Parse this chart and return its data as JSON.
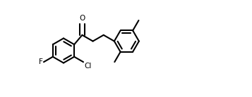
{
  "bg_color": "#ffffff",
  "line_color": "#000000",
  "line_width": 1.5,
  "font_size": 7.5,
  "figsize": [
    3.57,
    1.38
  ],
  "dpi": 100,
  "bl": 0.175,
  "xlim": [
    0,
    3.57
  ],
  "ylim": [
    0,
    1.38
  ]
}
